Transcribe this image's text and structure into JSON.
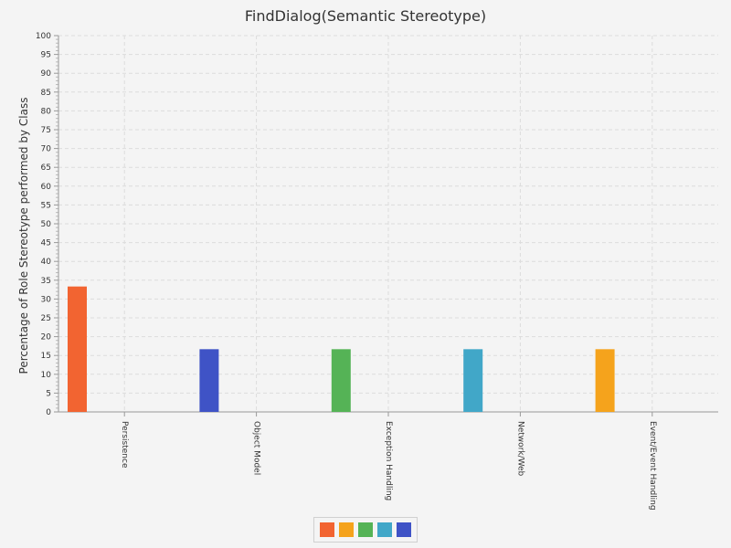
{
  "chart_data": {
    "type": "bar",
    "title": "FindDialog(Semantic Stereotype)",
    "ylabel": "Percentage of Role Stereotype performed by Class",
    "xlabel": "",
    "ylim": [
      0,
      100
    ],
    "y_major_step": 5,
    "grid": true,
    "categories": [
      "Persistence",
      "Object Model",
      "Exception Handling",
      "Network/Web",
      "Event/Event Handling"
    ],
    "values": [
      33.33,
      16.67,
      16.67,
      16.67,
      16.67
    ],
    "colors": [
      "#f26431",
      "#3f53c6",
      "#55b356",
      "#41a7c8",
      "#f5a31c"
    ],
    "legend": {
      "placement": "bottom-center",
      "colors": [
        "#f26431",
        "#f5a31c",
        "#55b356",
        "#41a7c8",
        "#3f53c6"
      ]
    }
  }
}
